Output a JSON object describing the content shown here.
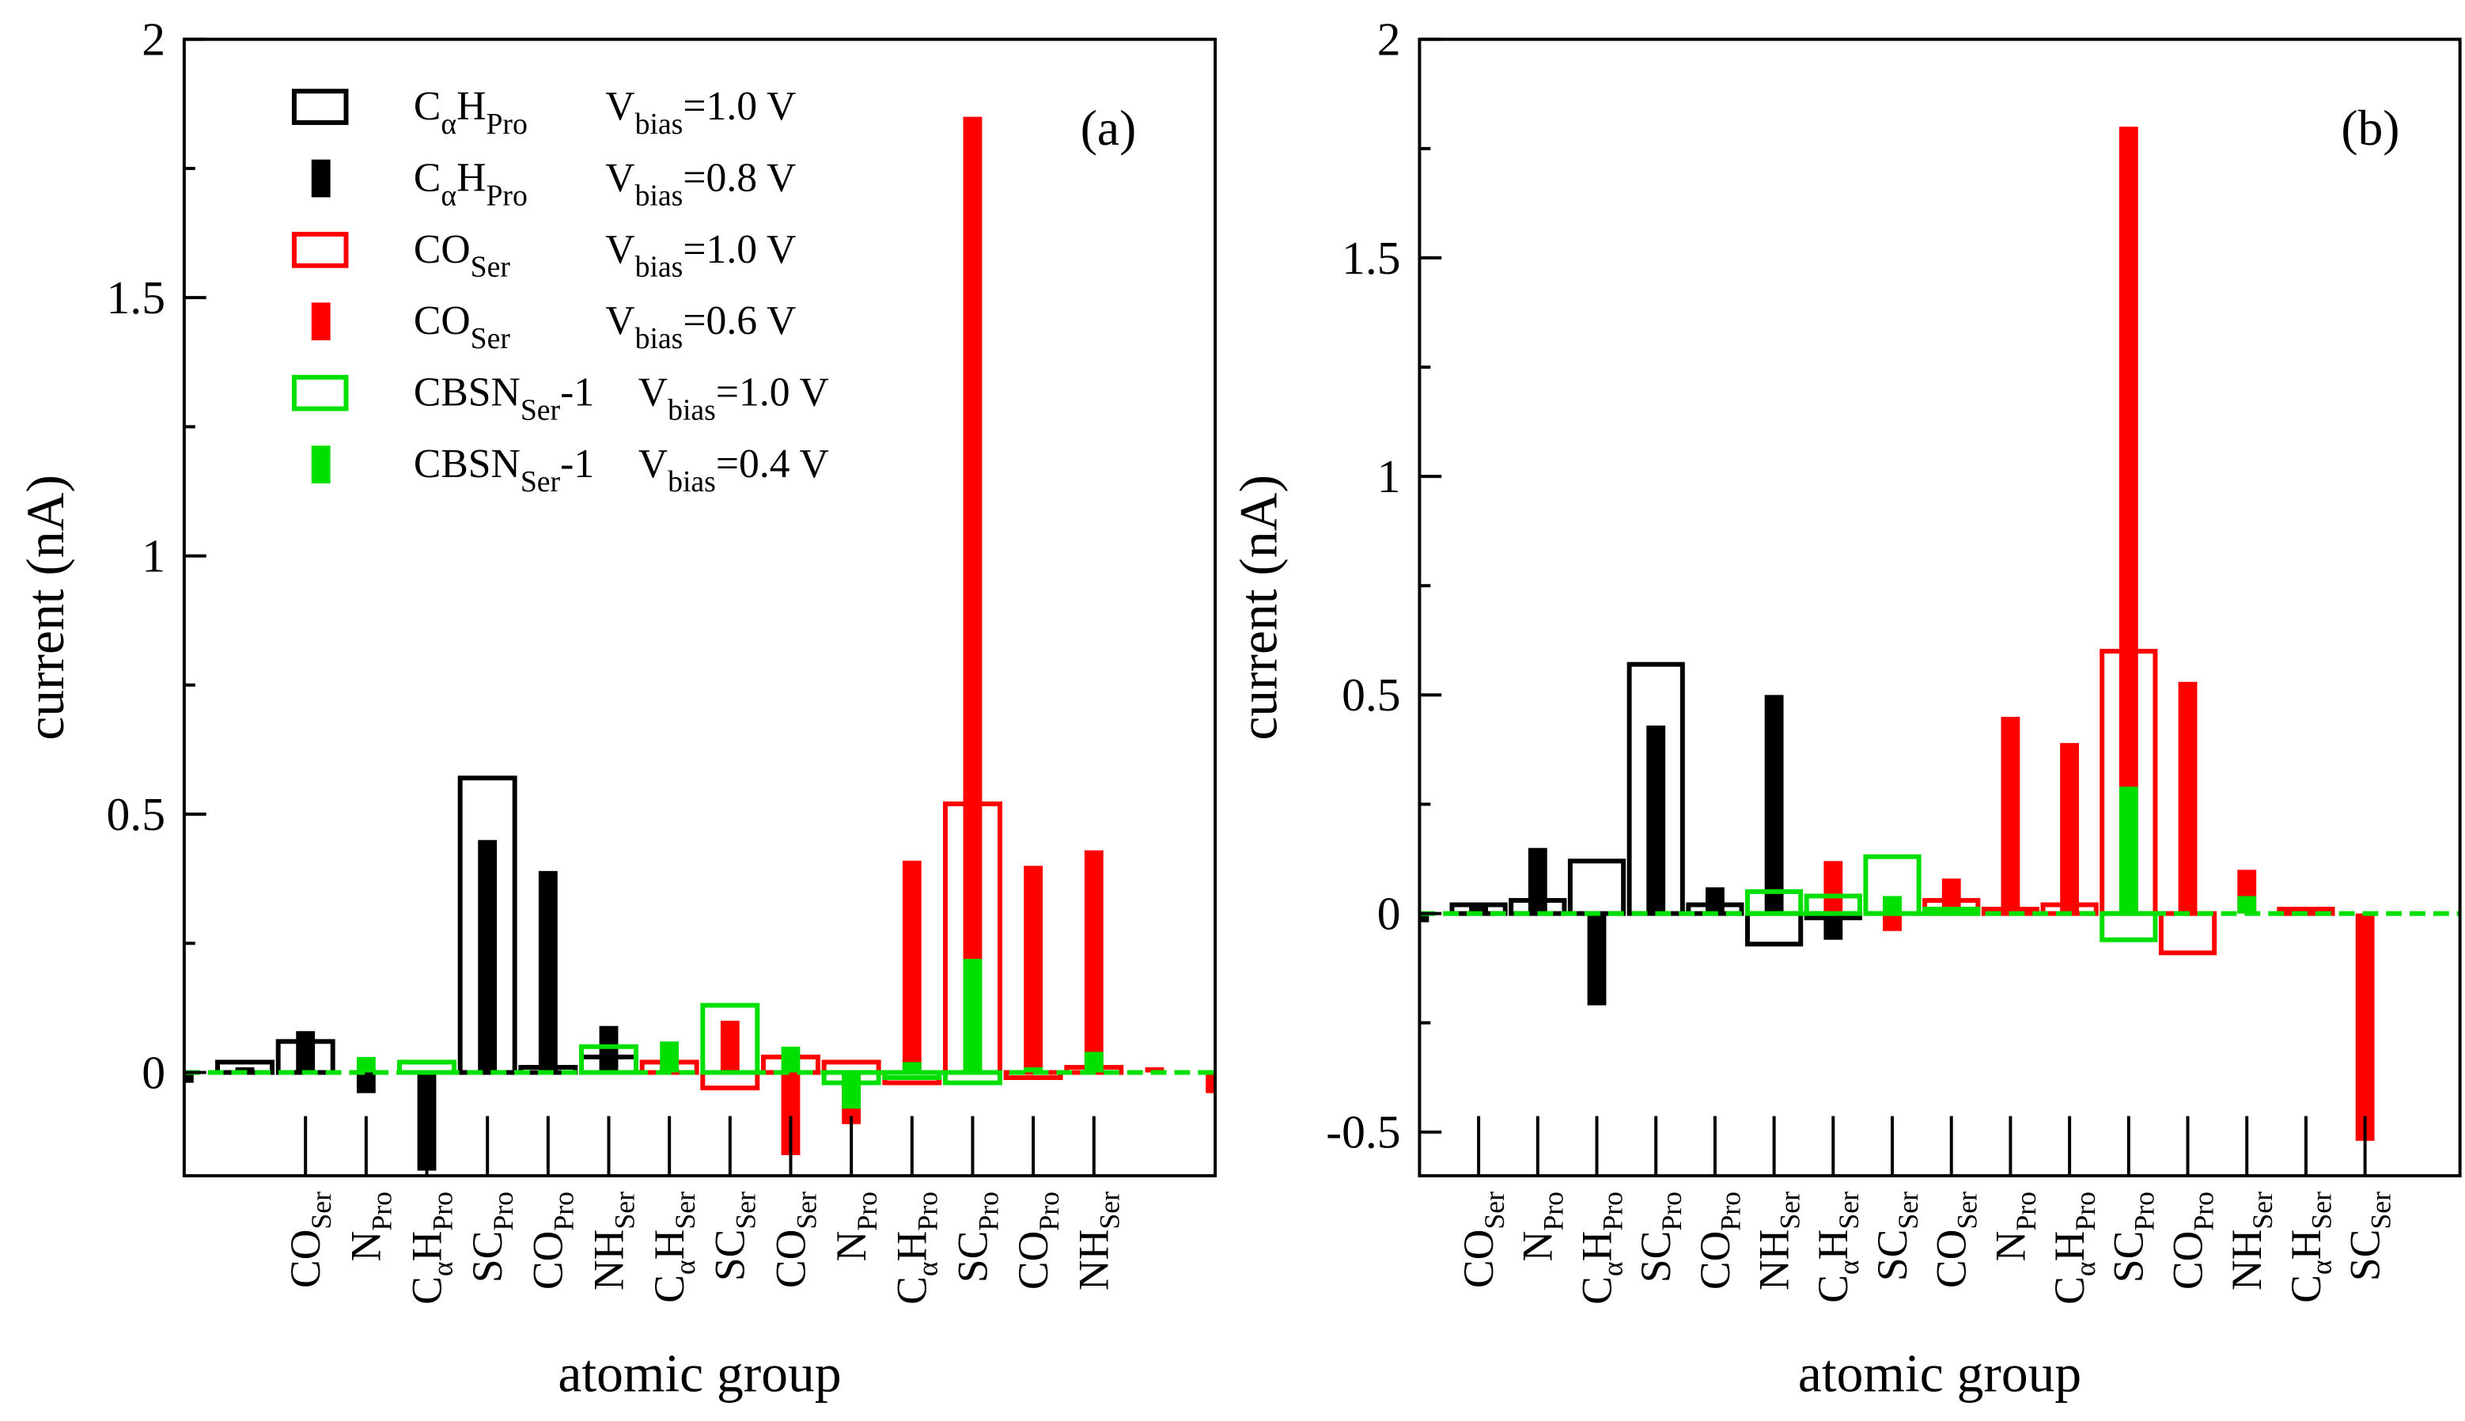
{
  "chart_data": [
    {
      "type": "bar",
      "panel_label": "(a)",
      "ylabel": "current (nA)",
      "xlabel": "atomic group",
      "categories": [
        null,
        null,
        [
          [
            "CO",
            "Ser"
          ]
        ],
        [
          [
            "N",
            "Pro"
          ]
        ],
        [
          [
            "C",
            "α"
          ],
          [
            "H",
            "Pro"
          ]
        ],
        [
          [
            "SC",
            "Pro"
          ]
        ],
        [
          [
            "CO",
            "Pro"
          ]
        ],
        [
          [
            "NH",
            "Ser"
          ]
        ],
        [
          [
            "C",
            "α"
          ],
          [
            "H",
            "Ser"
          ]
        ],
        [
          [
            "SC",
            "Ser"
          ]
        ],
        [
          [
            "CO",
            "Ser"
          ]
        ],
        [
          [
            "N",
            "Pro"
          ]
        ],
        [
          [
            "C",
            "α"
          ],
          [
            "H",
            "Pro"
          ]
        ],
        [
          [
            "SC",
            "Pro"
          ]
        ],
        [
          [
            "CO",
            "Pro"
          ]
        ],
        [
          [
            "NH",
            "Ser"
          ]
        ],
        null,
        null
      ],
      "ylim": [
        -0.2,
        2
      ],
      "yticks": [
        0,
        0.5,
        1,
        1.5,
        2
      ],
      "yminorticks": [
        0.25,
        0.75,
        1.25,
        1.75
      ],
      "legend": "upper left",
      "series": [
        {
          "name": {
            "group": [
              [
                "C",
                "α"
              ],
              [
                "H",
                "Pro"
              ]
            ],
            "bias": [
              [
                "V",
                "bias"
              ],
              [
                "=1.0 V"
              ]
            ]
          },
          "color": "#000000",
          "style": "outline",
          "values": [
            0,
            0.02,
            0.06,
            0,
            0,
            0.57,
            0.01,
            0.03,
            0,
            0,
            0,
            0,
            0,
            0,
            0,
            0,
            0,
            0
          ]
        },
        {
          "name": {
            "group": [
              [
                "C",
                "α"
              ],
              [
                "H",
                "Pro"
              ]
            ],
            "bias": [
              [
                "V",
                "bias"
              ],
              [
                "=0.8 V"
              ]
            ]
          },
          "color": "#000000",
          "style": "filled",
          "values": [
            -0.02,
            0.01,
            0.08,
            -0.04,
            -0.19,
            0.45,
            0.39,
            0.09,
            0.01,
            0,
            0,
            0,
            0,
            0,
            0,
            0,
            0,
            0
          ]
        },
        {
          "name": {
            "group": [
              [
                "CO",
                "Ser"
              ]
            ],
            "bias": [
              [
                "V",
                "bias"
              ],
              [
                "=1.0 V"
              ]
            ]
          },
          "color": "#ff0000",
          "style": "outline",
          "values": [
            0,
            0,
            0,
            0,
            0,
            0,
            0,
            0,
            0.02,
            -0.03,
            0.03,
            0.02,
            -0.02,
            0.52,
            -0.01,
            0.01,
            0,
            0
          ]
        },
        {
          "name": {
            "group": [
              [
                "CO",
                "Ser"
              ]
            ],
            "bias": [
              [
                "V",
                "bias"
              ],
              [
                "=0.6 V"
              ]
            ]
          },
          "color": "#ff0000",
          "style": "filled",
          "values": [
            0,
            0,
            0,
            0,
            0,
            0,
            0,
            0,
            0.02,
            0.1,
            -0.16,
            -0.1,
            0.41,
            1.85,
            0.4,
            0.43,
            0.01,
            -0.04
          ]
        },
        {
          "name": {
            "group": [
              [
                "CBSN",
                "Ser"
              ],
              [
                "-1"
              ]
            ],
            "bias": [
              [
                "V",
                "bias"
              ],
              [
                "=1.0 V"
              ]
            ]
          },
          "color": "#00e000",
          "style": "outline",
          "values": [
            0,
            0,
            0,
            0,
            0.02,
            0,
            0,
            0.05,
            0,
            0.13,
            0,
            -0.02,
            -0.01,
            -0.02,
            0,
            0,
            0,
            0
          ]
        },
        {
          "name": {
            "group": [
              [
                "CBSN",
                "Ser"
              ],
              [
                "-1"
              ]
            ],
            "bias": [
              [
                "V",
                "bias"
              ],
              [
                "=0.4 V"
              ]
            ]
          },
          "color": "#00e000",
          "style": "filled",
          "values": [
            0,
            0,
            0,
            0.03,
            0,
            0,
            0,
            0,
            0.06,
            0,
            0.05,
            -0.07,
            0.02,
            0.22,
            0.01,
            0.04,
            0,
            0
          ]
        }
      ]
    },
    {
      "type": "bar",
      "panel_label": "(b)",
      "ylabel": "current (nA)",
      "xlabel": "atomic group",
      "categories": [
        null,
        [
          [
            "CO",
            "Ser"
          ]
        ],
        [
          [
            "N",
            "Pro"
          ]
        ],
        [
          [
            "C",
            "α"
          ],
          [
            "H",
            "Pro"
          ]
        ],
        [
          [
            "SC",
            "Pro"
          ]
        ],
        [
          [
            "CO",
            "Pro"
          ]
        ],
        [
          [
            "NH",
            "Ser"
          ]
        ],
        [
          [
            "C",
            "α"
          ],
          [
            "H",
            "Ser"
          ]
        ],
        [
          [
            "SC",
            "Ser"
          ]
        ],
        [
          [
            "CO",
            "Ser"
          ]
        ],
        [
          [
            "N",
            "Pro"
          ]
        ],
        [
          [
            "C",
            "α"
          ],
          [
            "H",
            "Pro"
          ]
        ],
        [
          [
            "SC",
            "Pro"
          ]
        ],
        [
          [
            "CO",
            "Pro"
          ]
        ],
        [
          [
            "NH",
            "Ser"
          ]
        ],
        [
          [
            "C",
            "α"
          ],
          [
            "H",
            "Ser"
          ]
        ],
        [
          [
            "SC",
            "Ser"
          ]
        ]
      ],
      "ylim": [
        -0.6,
        2
      ],
      "yticks": [
        -0.5,
        0,
        0.5,
        1,
        1.5,
        2
      ],
      "yminorticks": [
        -0.25,
        0.25,
        0.75,
        1.25,
        1.75
      ],
      "series": [
        {
          "color": "#000000",
          "style": "outline",
          "values": [
            0,
            0.02,
            0.03,
            0.12,
            0.57,
            0.02,
            -0.07,
            -0.01,
            0,
            0,
            0,
            0,
            0,
            0,
            0,
            0,
            0
          ]
        },
        {
          "color": "#000000",
          "style": "filled",
          "values": [
            -0.02,
            0.02,
            0.15,
            -0.21,
            0.43,
            0.06,
            0.5,
            -0.06,
            0,
            0,
            0,
            0,
            0,
            0,
            0,
            0,
            0
          ]
        },
        {
          "color": "#ff0000",
          "style": "outline",
          "values": [
            0,
            0,
            0,
            0,
            0,
            0,
            0,
            0,
            0,
            0.03,
            0.01,
            0.02,
            0.6,
            -0.09,
            0,
            0.01,
            0
          ]
        },
        {
          "color": "#ff0000",
          "style": "filled",
          "values": [
            0,
            0,
            0,
            0,
            0,
            0,
            0,
            0.12,
            -0.04,
            0.08,
            0.45,
            0.39,
            1.8,
            0.53,
            0.1,
            0.01,
            -0.52
          ]
        },
        {
          "color": "#00e000",
          "style": "outline",
          "values": [
            0,
            0,
            0,
            0,
            0,
            0,
            0.05,
            0.04,
            0.13,
            0.01,
            0,
            0,
            -0.06,
            0,
            0,
            0,
            0
          ]
        },
        {
          "color": "#00e000",
          "style": "filled",
          "values": [
            0,
            0,
            0,
            0,
            0,
            0,
            0,
            0,
            0.04,
            0,
            0,
            0,
            0.29,
            0,
            0.04,
            0,
            0
          ]
        }
      ]
    }
  ]
}
